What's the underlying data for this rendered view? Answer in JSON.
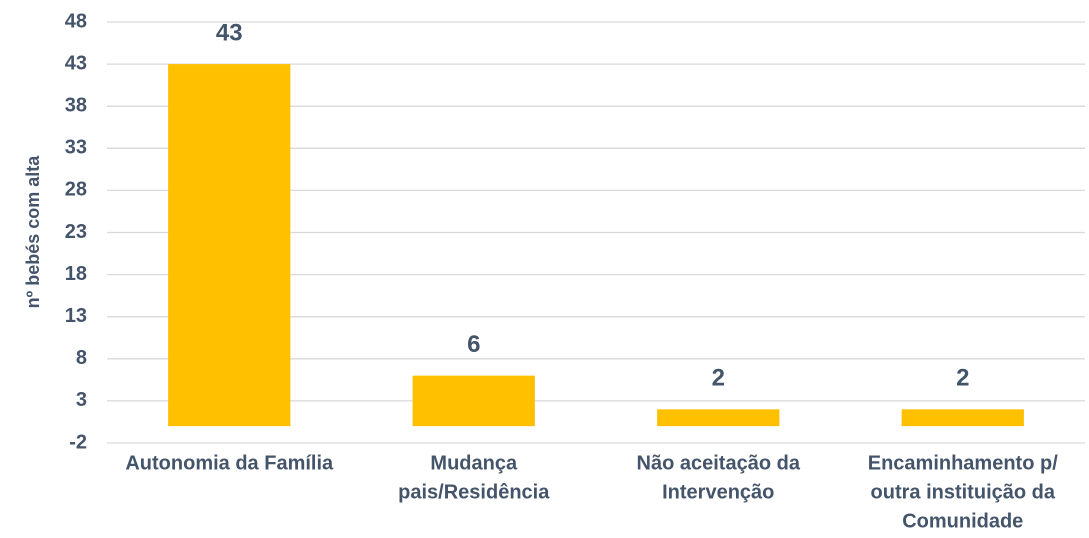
{
  "chart_data": {
    "type": "bar",
    "y_label": "nº bebés com alta",
    "categories": [
      [
        "Autonomia da Família"
      ],
      [
        "Mudança",
        "pais/Residência"
      ],
      [
        "Não aceitação da",
        "Intervenção"
      ],
      [
        "Encaminhamento p/",
        "outra instituição da",
        "Comunidade"
      ]
    ],
    "values": [
      43,
      6,
      2,
      2
    ],
    "color": "#ffc000",
    "ylim": [
      -2,
      48
    ],
    "yticks": [
      -2,
      3,
      8,
      13,
      18,
      23,
      28,
      33,
      38,
      43,
      48
    ],
    "grid": true
  }
}
